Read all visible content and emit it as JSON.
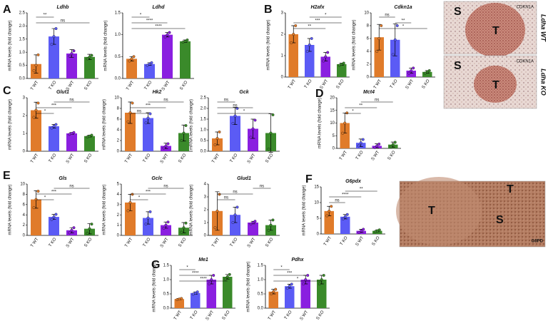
{
  "chart_data": [
    {
      "type": "bar",
      "panel": "A",
      "title": "Ldhb",
      "ylabel": "mRNA levels (fold change)",
      "categories": [
        "T WT",
        "T KO",
        "S WT",
        "S KO"
      ],
      "colors": [
        "#e07b2a",
        "#5b5bf5",
        "#8a1fe0",
        "#3a8a2a"
      ],
      "values": [
        0.55,
        1.6,
        0.95,
        0.82
      ],
      "errors": [
        0.35,
        0.3,
        0.15,
        0.1
      ],
      "points": [
        [
          0.3,
          0.5,
          0.9
        ],
        [
          1.3,
          1.6,
          1.9
        ],
        [
          0.85,
          0.95,
          1.05
        ],
        [
          0.75,
          0.82,
          0.88
        ]
      ],
      "ylim": [
        0,
        2.5
      ],
      "yticks": [
        {
          "value": 0,
          "label": "0.0"
        },
        0.5,
        {
          "value": 1,
          "label": "1.0"
        },
        1.5,
        {
          "value": 2,
          "label": "2.0"
        },
        2.5
      ],
      "brackets": [
        {
          "label": "**",
          "pair": [
            "T WT",
            "T KO"
          ]
        },
        {
          "label": "ns",
          "pair": [
            "T WT",
            "S KO"
          ]
        }
      ]
    },
    {
      "type": "bar",
      "title": "Ldhd",
      "ylabel": "mRNA levels (fold change)",
      "categories": [
        "T WT",
        "T KO",
        "S WT",
        "S KO"
      ],
      "colors": [
        "#e07b2a",
        "#5b5bf5",
        "#8a1fe0",
        "#3a8a2a"
      ],
      "values": [
        0.45,
        0.33,
        1.0,
        0.85
      ],
      "errors": [
        0.05,
        0.03,
        0.05,
        0.03
      ],
      "points": [
        [
          0.4,
          0.45,
          0.5
        ],
        [
          0.3,
          0.33,
          0.36
        ],
        [
          0.95,
          1.0,
          1.05
        ],
        [
          0.83,
          0.85,
          0.88
        ]
      ],
      "ylim": [
        0,
        1.5
      ],
      "yticks": [
        {
          "value": 0,
          "label": "0.0"
        },
        0.5,
        {
          "value": 1,
          "label": "1.0"
        },
        1.5
      ],
      "brackets": [
        {
          "label": "*",
          "pair": [
            "T WT",
            "T KO"
          ]
        },
        {
          "label": "****",
          "pair": [
            "T WT",
            "S WT"
          ]
        },
        {
          "label": "****",
          "pair": [
            "T WT",
            "S KO"
          ]
        }
      ]
    },
    {
      "type": "bar",
      "panel": "B",
      "title": "H2afx",
      "ylabel": "mRNA levels (fold change)",
      "categories": [
        "T WT",
        "T KO",
        "S WT",
        "S KO"
      ],
      "colors": [
        "#e07b2a",
        "#5b5bf5",
        "#8a1fe0",
        "#3a8a2a"
      ],
      "values": [
        2.0,
        1.5,
        0.95,
        0.6
      ],
      "errors": [
        0.4,
        0.3,
        0.2,
        0.05
      ],
      "points": [
        [
          1.6,
          2.0,
          2.4
        ],
        [
          1.2,
          1.5,
          1.8
        ],
        [
          0.75,
          0.95,
          1.15
        ],
        [
          0.55,
          0.6,
          0.65
        ]
      ],
      "ylim": [
        0,
        3
      ],
      "yticks": [
        0,
        1,
        2,
        3
      ],
      "brackets": [
        {
          "label": "*",
          "pair": [
            "T KO",
            "S KO"
          ]
        },
        {
          "label": "***",
          "pair": [
            "T WT",
            "S KO"
          ]
        },
        {
          "label": "**",
          "pair": [
            "T WT",
            "S WT"
          ]
        }
      ]
    },
    {
      "type": "bar",
      "title": "Cdkn1a",
      "ylabel": "mRNA levels (fold change)",
      "categories": [
        "T WT",
        "T KO",
        "S WT",
        "S KO"
      ],
      "colors": [
        "#e07b2a",
        "#5b5bf5",
        "#8a1fe0",
        "#3a8a2a"
      ],
      "values": [
        6.2,
        5.8,
        1.0,
        0.8
      ],
      "errors": [
        2.0,
        2.5,
        0.4,
        0.2
      ],
      "points": [
        [
          4,
          6,
          8
        ],
        [
          3.5,
          5.8,
          8
        ],
        [
          0.6,
          1.0,
          1.4
        ],
        [
          0.6,
          0.8,
          1.0
        ]
      ],
      "ylim": [
        0,
        10
      ],
      "yticks": [
        0,
        2,
        4,
        6,
        8,
        10
      ],
      "brackets": [
        {
          "label": "ns",
          "pair": [
            "T WT",
            "T KO"
          ]
        },
        {
          "label": "**",
          "pair": [
            "T KO",
            "S WT"
          ]
        },
        {
          "label": "*",
          "pair": [
            "T WT",
            "S KO"
          ]
        }
      ]
    },
    {
      "type": "bar",
      "panel": "C",
      "title": "Glut1",
      "ylabel": "mRNA levels (fold change)",
      "categories": [
        "T WT",
        "T KO",
        "S WT",
        "S KO"
      ],
      "colors": [
        "#e07b2a",
        "#5b5bf5",
        "#8a1fe0",
        "#3a8a2a"
      ],
      "values": [
        2.3,
        1.4,
        1.0,
        0.85
      ],
      "errors": [
        0.45,
        0.1,
        0.05,
        0.05
      ],
      "points": [
        [
          1.9,
          2.3,
          2.7
        ],
        [
          1.3,
          1.4,
          1.5
        ],
        [
          0.95,
          1.0,
          1.05
        ],
        [
          0.8,
          0.85,
          0.9
        ]
      ],
      "ylim": [
        0,
        3
      ],
      "yticks": [
        0,
        1,
        2,
        3
      ],
      "brackets": [
        {
          "label": "ns",
          "pair": [
            "T KO",
            "S KO"
          ]
        },
        {
          "label": "***",
          "pair": [
            "T WT",
            "S WT"
          ]
        },
        {
          "label": "*",
          "pair": [
            "T WT",
            "T KO"
          ]
        }
      ]
    },
    {
      "type": "bar",
      "title": "Hk2",
      "ylabel": "mRNA levels (fold change)",
      "categories": [
        "T WT",
        "T KO",
        "S WT",
        "S KO"
      ],
      "colors": [
        "#e07b2a",
        "#5b5bf5",
        "#8a1fe0",
        "#3a8a2a"
      ],
      "values": [
        7.2,
        6.2,
        1.0,
        3.4
      ],
      "errors": [
        2.0,
        1.0,
        0.5,
        1.5
      ],
      "points": [
        [
          5.5,
          7.2,
          9
        ],
        [
          5.3,
          6.2,
          7
        ],
        [
          0.6,
          1.0,
          1.4
        ],
        [
          2,
          3.4,
          4.8
        ]
      ],
      "ylim": [
        0,
        10
      ],
      "yticks": [
        0,
        2,
        4,
        6,
        8,
        10
      ],
      "brackets": [
        {
          "label": "ns",
          "pair": [
            "T KO",
            "S KO"
          ]
        },
        {
          "label": "***",
          "pair": [
            "T WT",
            "S WT"
          ]
        },
        {
          "label": "ns",
          "pair": [
            "T WT",
            "T KO"
          ]
        }
      ]
    },
    {
      "type": "bar",
      "title": "Gck",
      "ylabel": "mRNA levels (fold change)",
      "categories": [
        "T WT",
        "T KO",
        "S WT",
        "S KO"
      ],
      "colors": [
        "#e07b2a",
        "#5b5bf5",
        "#8a1fe0",
        "#3a8a2a"
      ],
      "values": [
        0.6,
        1.65,
        1.05,
        0.85
      ],
      "errors": [
        0.3,
        0.4,
        0.45,
        0.9
      ],
      "points": [
        [
          0.3,
          0.6,
          0.9
        ],
        [
          1.3,
          1.65,
          2.0
        ],
        [
          0.65,
          1.05,
          1.45
        ],
        [
          0.1,
          0.85,
          1.7
        ]
      ],
      "ylim": [
        0,
        2.5
      ],
      "yticks": [
        {
          "value": 0,
          "label": "0.0"
        },
        0.5,
        {
          "value": 1,
          "label": "1.0"
        },
        1.5,
        {
          "value": 2,
          "label": "2.0"
        },
        2.5
      ],
      "brackets": [
        {
          "label": "ns",
          "pair": [
            "T WT",
            "T KO"
          ]
        },
        {
          "label": "ns",
          "pair": [
            "T WT",
            "S WT"
          ]
        },
        {
          "label": "*",
          "pair": [
            "T WT",
            "S KO"
          ]
        }
      ]
    },
    {
      "type": "bar",
      "panel": "D",
      "title": "Mct4",
      "ylabel": "mRNA levels (fold change)",
      "categories": [
        "T WT",
        "T KO",
        "S WT",
        "S KO"
      ],
      "colors": [
        "#e07b2a",
        "#5b5bf5",
        "#8a1fe0",
        "#3a8a2a"
      ],
      "values": [
        10,
        2.2,
        1.0,
        1.5
      ],
      "errors": [
        4,
        1.5,
        0.8,
        1
      ],
      "points": [
        [
          6,
          10,
          14
        ],
        [
          1,
          2.2,
          3.5
        ],
        [
          0.3,
          1.0,
          1.7
        ],
        [
          0.6,
          1.5,
          2.4
        ]
      ],
      "ylim": [
        0,
        20
      ],
      "yticks": [
        0,
        5,
        10,
        15,
        20
      ],
      "brackets": [
        {
          "label": "ns",
          "pair": [
            "T KO",
            "S KO"
          ]
        },
        {
          "label": "**",
          "pair": [
            "T WT",
            "S WT"
          ]
        },
        {
          "label": "*",
          "pair": [
            "T WT",
            "T KO"
          ]
        }
      ]
    },
    {
      "type": "bar",
      "panel": "E",
      "title": "Gls",
      "ylabel": "mRNA levels (fold change)",
      "categories": [
        "T WT",
        "T KO",
        "S WT",
        "S KO"
      ],
      "colors": [
        "#e07b2a",
        "#5b5bf5",
        "#8a1fe0",
        "#3a8a2a"
      ],
      "values": [
        7.0,
        3.6,
        1.0,
        1.3
      ],
      "errors": [
        1.7,
        0.5,
        0.5,
        1.0
      ],
      "points": [
        [
          5.4,
          7,
          8.6
        ],
        [
          3.1,
          3.6,
          4.1
        ],
        [
          0.5,
          1.0,
          1.5
        ],
        [
          0.4,
          1.3,
          2.2
        ]
      ],
      "ylim": [
        0,
        10
      ],
      "yticks": [
        0,
        2,
        4,
        6,
        8,
        10
      ],
      "brackets": [
        {
          "label": "ns",
          "pair": [
            "T KO",
            "S KO"
          ]
        },
        {
          "label": "***",
          "pair": [
            "T WT",
            "S WT"
          ]
        },
        {
          "label": "*",
          "pair": [
            "T WT",
            "T KO"
          ]
        }
      ]
    },
    {
      "type": "bar",
      "title": "Gclc",
      "ylabel": "mRNA levels (fold change)",
      "categories": [
        "T WT",
        "T KO",
        "S WT",
        "S KO"
      ],
      "colors": [
        "#e07b2a",
        "#5b5bf5",
        "#8a1fe0",
        "#3a8a2a"
      ],
      "values": [
        3.2,
        1.7,
        1.0,
        0.75
      ],
      "errors": [
        0.8,
        0.6,
        0.3,
        0.5
      ],
      "points": [
        [
          2.4,
          3.2,
          4.0
        ],
        [
          1.1,
          1.7,
          2.3
        ],
        [
          0.7,
          1.0,
          1.3
        ],
        [
          0.3,
          0.75,
          1.2
        ]
      ],
      "ylim": [
        0,
        5
      ],
      "yticks": [
        0,
        1,
        2,
        3,
        4,
        5
      ],
      "brackets": [
        {
          "label": "ns",
          "pair": [
            "T KO",
            "S KO"
          ]
        },
        {
          "label": "***",
          "pair": [
            "T WT",
            "S WT"
          ]
        },
        {
          "label": "*",
          "pair": [
            "T WT",
            "T KO"
          ]
        }
      ]
    },
    {
      "type": "bar",
      "title": "Glud1",
      "ylabel": "mRNA levels (fold change)",
      "categories": [
        "T WT",
        "T KO",
        "S WT",
        "S KO"
      ],
      "colors": [
        "#e07b2a",
        "#5b5bf5",
        "#8a1fe0",
        "#3a8a2a"
      ],
      "values": [
        1.9,
        1.6,
        1.0,
        0.8
      ],
      "errors": [
        1.5,
        0.6,
        0.1,
        0.4
      ],
      "points": [
        [
          0.6,
          1.9,
          3.2
        ],
        [
          1.0,
          1.6,
          2.2
        ],
        [
          0.9,
          1.0,
          1.1
        ],
        [
          0.4,
          0.8,
          1.2
        ]
      ],
      "ylim": [
        0,
        4
      ],
      "yticks": [
        0,
        1,
        2,
        3,
        4
      ],
      "brackets": [
        {
          "label": "ns",
          "pair": [
            "S WT",
            "S KO"
          ]
        },
        {
          "label": "ns",
          "pair": [
            "T WT",
            "S WT"
          ]
        },
        {
          "label": "ns",
          "pair": [
            "T WT",
            "T KO"
          ]
        }
      ]
    },
    {
      "type": "bar",
      "panel": "F",
      "title": "G6pdx",
      "ylabel": "mRNA levels (fold change)",
      "categories": [
        "T WT",
        "T KO",
        "S WT",
        "S KO"
      ],
      "colors": [
        "#e07b2a",
        "#5b5bf5",
        "#8a1fe0",
        "#3a8a2a"
      ],
      "values": [
        7.3,
        5.5,
        1.0,
        1.0
      ],
      "errors": [
        1.5,
        0.7,
        0.5,
        0.3
      ],
      "points": [
        [
          5.8,
          7.3,
          8.8
        ],
        [
          4.8,
          5.5,
          6.2
        ],
        [
          0.5,
          1.0,
          1.5
        ],
        [
          0.7,
          1.0,
          1.3
        ]
      ],
      "ylim": [
        0,
        15
      ],
      "yticks": [
        0,
        5,
        10,
        15
      ],
      "brackets": [
        {
          "label": "**",
          "pair": [
            "T KO",
            "S KO"
          ]
        },
        {
          "label": "****",
          "pair": [
            "T WT",
            "S WT"
          ]
        },
        {
          "label": "ns",
          "pair": [
            "T WT",
            "T KO"
          ]
        }
      ]
    },
    {
      "type": "bar",
      "panel": "G",
      "title": "Me1",
      "ylabel": "mRNA levels (fold change)",
      "categories": [
        "T WT",
        "T KO",
        "S WT",
        "S KO"
      ],
      "colors": [
        "#e07b2a",
        "#5b5bf5",
        "#8a1fe0",
        "#3a8a2a"
      ],
      "values": [
        0.32,
        0.53,
        1.0,
        1.1
      ],
      "errors": [
        0.02,
        0.04,
        0.15,
        0.08
      ],
      "points": [
        [
          0.3,
          0.32,
          0.34
        ],
        [
          0.49,
          0.53,
          0.57
        ],
        [
          0.85,
          1.0,
          1.15
        ],
        [
          1.02,
          1.1,
          1.18
        ]
      ],
      "ylim": [
        0,
        1.5
      ],
      "yticks": [
        {
          "value": 0,
          "label": "0.0"
        },
        0.5,
        {
          "value": 1,
          "label": "1.0"
        },
        1.5
      ],
      "brackets": [
        {
          "label": "*",
          "pair": [
            "T WT",
            "T KO"
          ]
        },
        {
          "label": "****",
          "pair": [
            "T WT",
            "S WT"
          ]
        },
        {
          "label": "****",
          "pair": [
            "T WT",
            "S KO"
          ]
        }
      ]
    },
    {
      "type": "bar",
      "title": "Pdhx",
      "ylabel": "mRNA levels (fold change)",
      "categories": [
        "T WT",
        "T KO",
        "S WT",
        "S KO"
      ],
      "colors": [
        "#e07b2a",
        "#5b5bf5",
        "#8a1fe0",
        "#3a8a2a"
      ],
      "values": [
        0.58,
        0.77,
        1.0,
        1.0
      ],
      "errors": [
        0.08,
        0.07,
        0.15,
        0.15
      ],
      "points": [
        [
          0.5,
          0.58,
          0.66
        ],
        [
          0.7,
          0.77,
          0.84
        ],
        [
          0.85,
          1.0,
          1.15
        ],
        [
          0.85,
          1.0,
          1.15
        ]
      ],
      "ylim": [
        0,
        1.5
      ],
      "yticks": [
        {
          "value": 0,
          "label": "0.0"
        },
        0.5,
        {
          "value": 1,
          "label": "1.0"
        },
        1.5
      ],
      "brackets": [
        {
          "label": "*",
          "pair": [
            "T WT",
            "T KO"
          ]
        },
        {
          "label": "***",
          "pair": [
            "T WT",
            "S WT"
          ]
        },
        {
          "label": "*",
          "pair": [
            "T WT",
            "S KO"
          ]
        }
      ]
    }
  ],
  "images": [
    {
      "labels": [
        "S",
        "T",
        "CDKN1A"
      ],
      "caption": "Ldha WT"
    },
    {
      "labels": [
        "S",
        "T",
        "CDKN1A"
      ],
      "caption": "Ldha KO"
    },
    {
      "labels": [
        "T",
        "T",
        "S",
        "G6PD"
      ]
    }
  ]
}
